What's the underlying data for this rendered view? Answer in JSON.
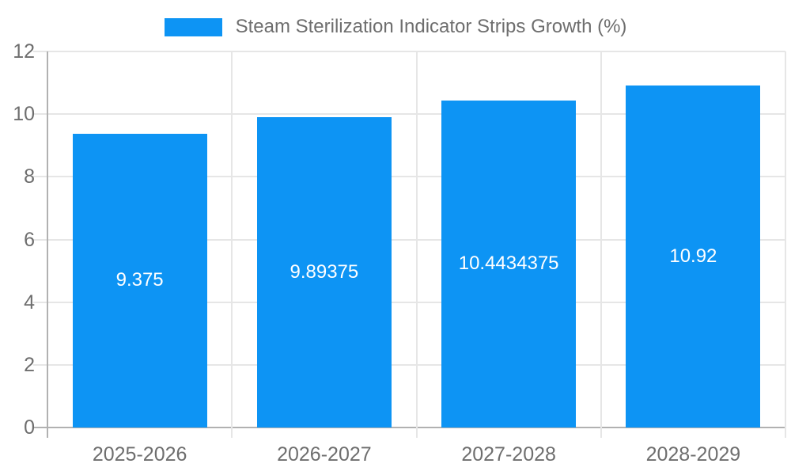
{
  "chart_data": {
    "type": "bar",
    "title": "Steam Sterilization Indicator Strips Growth (%)",
    "categories": [
      "2025-2026",
      "2026-2027",
      "2027-2028",
      "2028-2029"
    ],
    "values": [
      9.375,
      9.89375,
      10.4434375,
      10.92
    ],
    "value_labels": [
      "9.375",
      "9.89375",
      "10.4434375",
      "10.92"
    ],
    "y_ticks": [
      0,
      2,
      4,
      6,
      8,
      10,
      12
    ],
    "ylim": [
      0,
      12
    ],
    "xlabel": "",
    "ylabel": "",
    "grid": true,
    "legend_position": "top-center",
    "colors": {
      "bar": "#0d94f4",
      "value_label": "#ffffff",
      "axis_text": "#6e6e6e",
      "gridline": "#e6e6e6",
      "axis_line": "#b1b1b1",
      "background": "#ffffff"
    }
  }
}
